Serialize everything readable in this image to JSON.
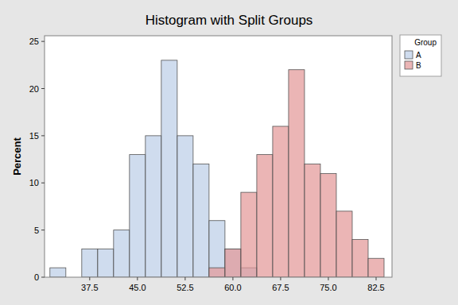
{
  "chart_data": {
    "type": "histogram",
    "title": "Histogram with Split Groups",
    "y_label": "Percent",
    "legend_title": "Group",
    "bins": [
      31.25,
      33.75,
      36.25,
      38.75,
      41.25,
      43.75,
      46.25,
      48.75,
      51.25,
      53.75,
      56.25,
      58.75,
      61.25,
      63.75,
      66.25,
      68.75,
      71.25,
      73.75,
      76.25,
      78.75,
      81.25,
      83.75
    ],
    "series": [
      {
        "name": "A",
        "color": "#bacde7",
        "values": [
          1,
          0,
          3,
          3,
          5,
          13,
          15,
          23,
          15,
          12,
          6,
          3,
          1,
          0,
          0,
          0,
          0,
          0,
          0,
          0,
          0
        ]
      },
      {
        "name": "B",
        "color": "#e29595",
        "values": [
          0,
          0,
          0,
          0,
          0,
          0,
          0,
          0,
          0,
          0,
          1,
          3,
          9,
          13,
          16,
          22,
          12,
          11,
          7,
          4,
          2
        ]
      }
    ],
    "xlim": [
      30.4,
      85
    ],
    "xticks": [
      37.5,
      {
        "value": 45,
        "label": "45.0"
      },
      52.5,
      {
        "value": 60,
        "label": "60.0"
      },
      67.5,
      {
        "value": 75,
        "label": "75.0"
      },
      82.5
    ],
    "ylim": [
      0,
      25.6
    ],
    "yticks": [
      0,
      5,
      10,
      15,
      20,
      25
    ],
    "grid": false,
    "legend": "right"
  }
}
